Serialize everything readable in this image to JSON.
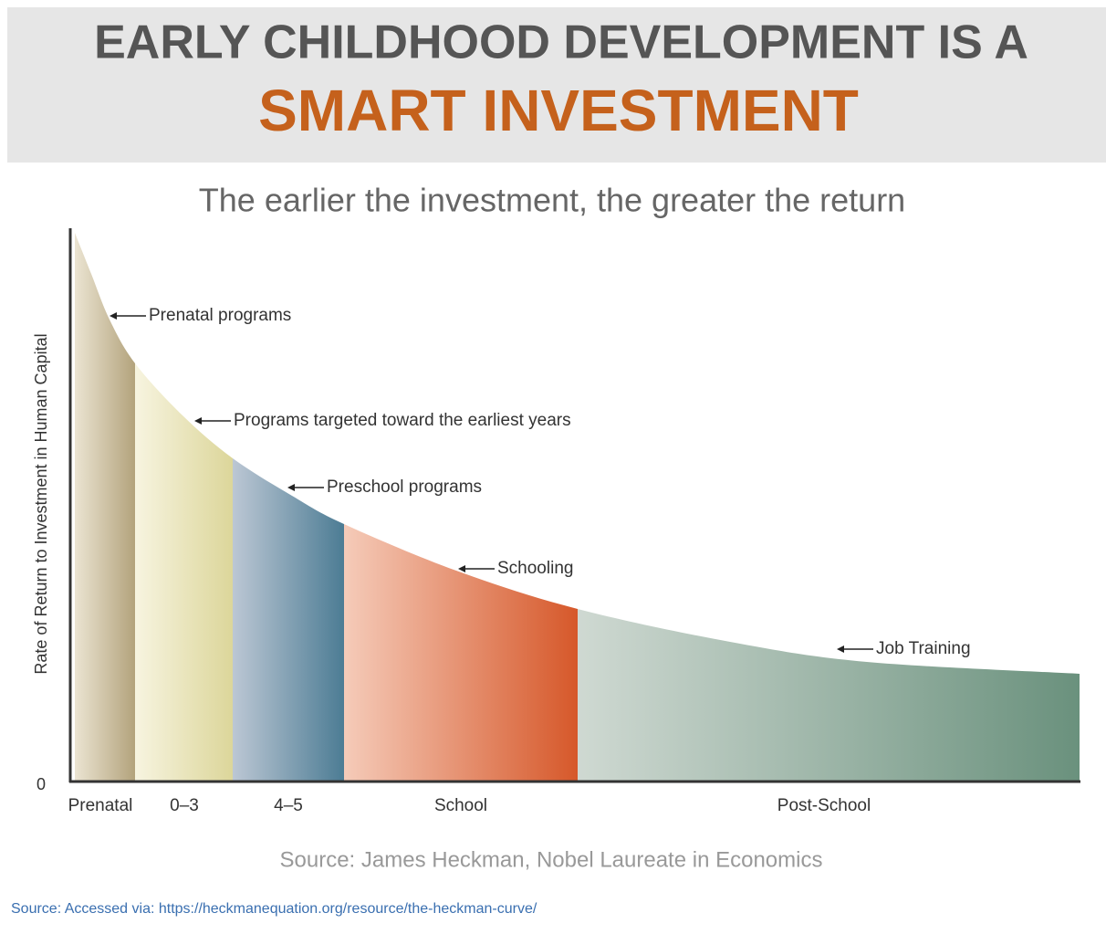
{
  "header": {
    "title_line1": "EARLY CHILDHOOD DEVELOPMENT IS A",
    "title_line2": "SMART INVESTMENT"
  },
  "subtitle": "The earlier the investment, the greater the return",
  "axis": {
    "y_label": "Rate of Return to Investment in Human Capital",
    "y_tick": "0"
  },
  "segments": [
    {
      "label": "Prenatal",
      "colors": [
        "#ebe4d2",
        "#b3a37c"
      ]
    },
    {
      "label": "0–3",
      "colors": [
        "#f7f4e0",
        "#dcd69a"
      ]
    },
    {
      "label": "4–5",
      "colors": [
        "#bcc7d4",
        "#4c7c94"
      ]
    },
    {
      "label": "School",
      "colors": [
        "#f5cbb9",
        "#d6582a"
      ]
    },
    {
      "label": "Post-School",
      "colors": [
        "#cfd9d2",
        "#6a917d"
      ]
    }
  ],
  "annotations": [
    "Prenatal programs",
    "Programs targeted toward the earliest years",
    "Preschool programs",
    "Schooling",
    "Job Training"
  ],
  "credit": "Source: James Heckman, Nobel Laureate in Economics",
  "source": "Source: Accessed via: https://heckmanequation.org/resource/the-heckman-curve/"
}
